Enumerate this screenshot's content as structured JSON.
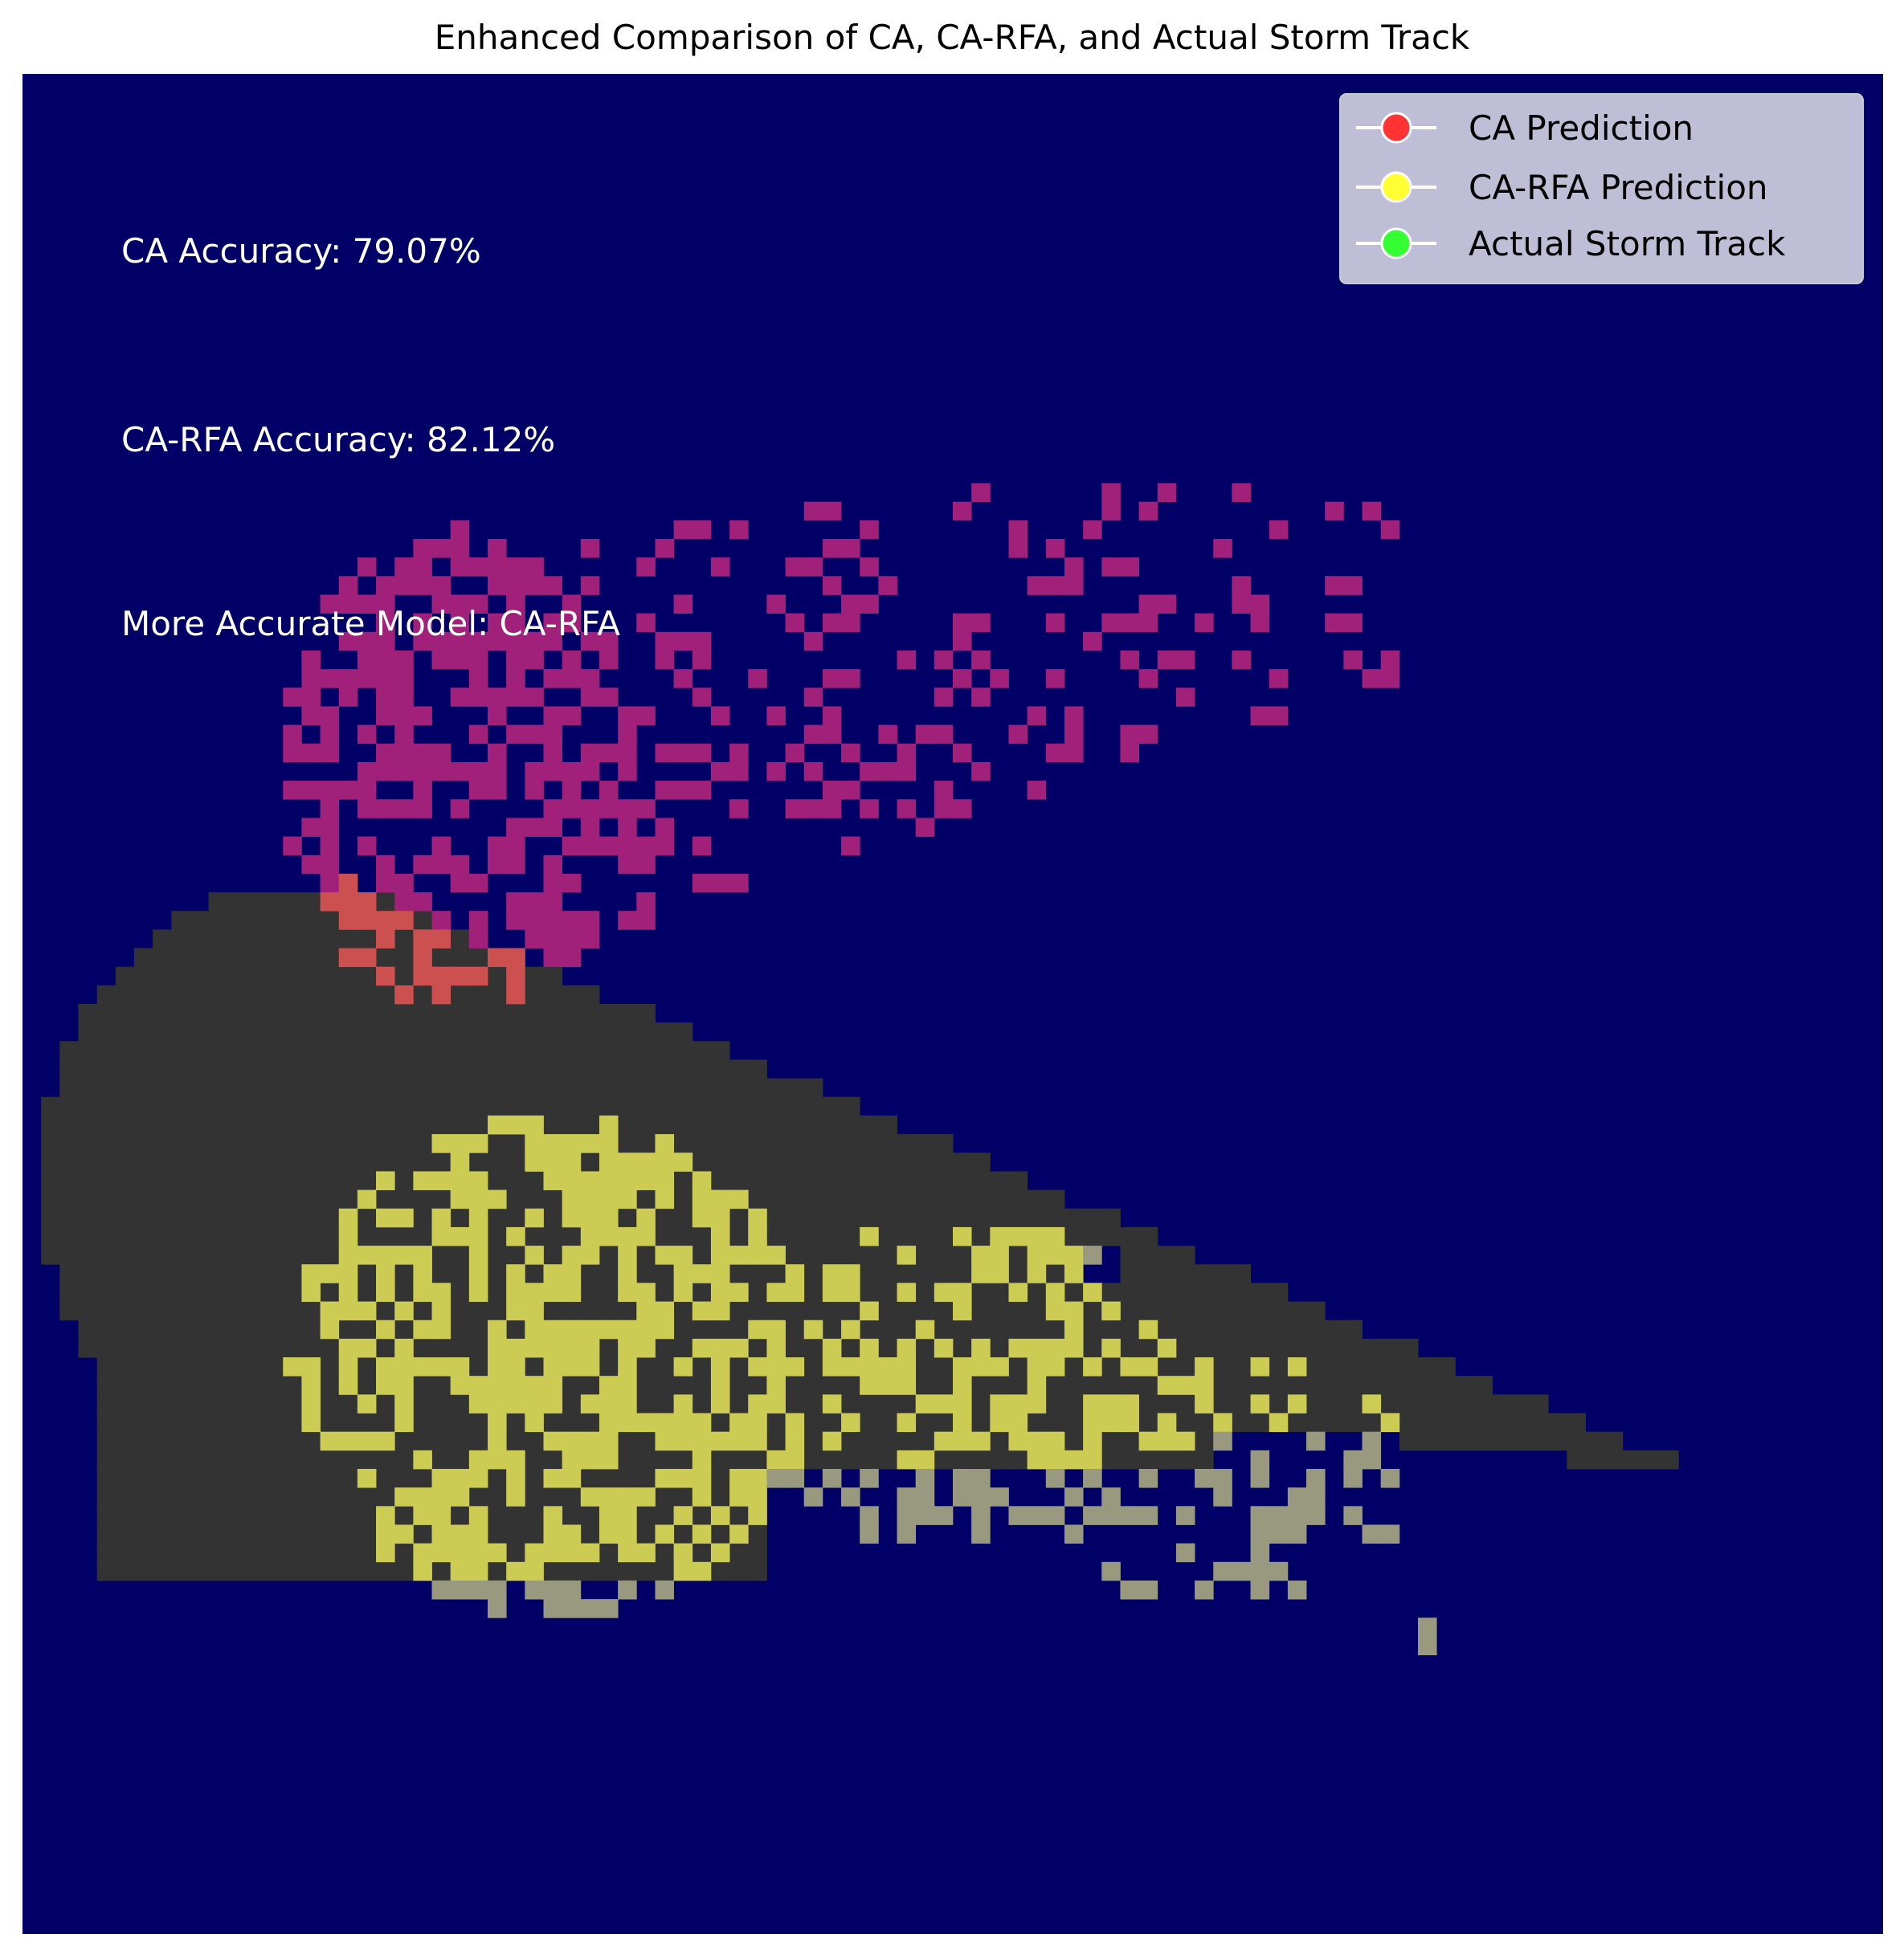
{
  "chart_data": {
    "type": "heatmap",
    "title": "Enhanced Comparison of CA, CA-RFA, and Actual Storm Track",
    "xlabel": "",
    "ylabel": "",
    "axes_visible": false,
    "grid": false,
    "grid_size": [
      100,
      100
    ],
    "background_color": "#000066",
    "annotations": [
      "CA Accuracy: 79.07%",
      "CA-RFA Accuracy: 82.12%",
      "More Accurate Model: CA-RFA"
    ],
    "legend": {
      "placement": "top-right",
      "entries": [
        {
          "label": "CA Prediction",
          "color": "#ff3333"
        },
        {
          "label": "CA-RFA Prediction",
          "color": "#ffff33"
        },
        {
          "label": "Actual Storm Track",
          "color": "#33ff33"
        }
      ]
    },
    "layers": [
      {
        "name": "Actual Storm Track",
        "color": "#333333",
        "pattern": "solid",
        "region": "large elongated mass, left edge to lower right"
      },
      {
        "name": "CA Prediction",
        "color": "#a0207a",
        "overlap_color": "#cc5050",
        "pattern": "speckled",
        "region": "upper-left spreading to upper-right"
      },
      {
        "name": "CA-RFA Prediction",
        "color": "#cccc55",
        "overlap_color": "#999980",
        "pattern": "speckled",
        "region": "lower-left spreading to lower-right"
      }
    ]
  }
}
